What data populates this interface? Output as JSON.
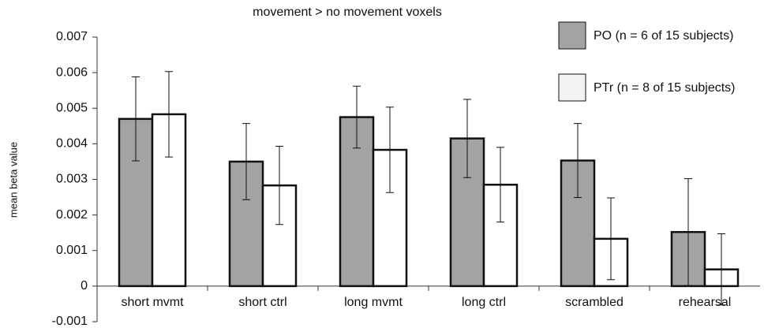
{
  "chart_data": {
    "type": "bar",
    "title": "movement > no movement voxels",
    "ylabel": "mean beta value",
    "categories": [
      "short mvmt",
      "short ctrl",
      "long mvmt",
      "long ctrl",
      "scrambled",
      "rehearsal"
    ],
    "series": [
      {
        "name": "PO (n = 6 of 15 subjects)",
        "color": "#a3a3a3",
        "values": [
          0.0047,
          0.0035,
          0.00475,
          0.00415,
          0.00353,
          0.00152
        ],
        "errors": [
          0.00118,
          0.00107,
          0.00087,
          0.0011,
          0.00104,
          0.0015
        ]
      },
      {
        "name": "PTr (n = 8 of 15 subjects)",
        "color": "#ffffff",
        "values": [
          0.00483,
          0.00283,
          0.00383,
          0.00285,
          0.00133,
          0.00047
        ],
        "errors": [
          0.0012,
          0.0011,
          0.0012,
          0.00105,
          0.00115,
          0.001
        ]
      }
    ],
    "ylim": [
      -0.001,
      0.007
    ],
    "yticks": [
      -0.001,
      0,
      0.001,
      0.002,
      0.003,
      0.004,
      0.005,
      0.006,
      0.007
    ],
    "legend": "upper right"
  }
}
